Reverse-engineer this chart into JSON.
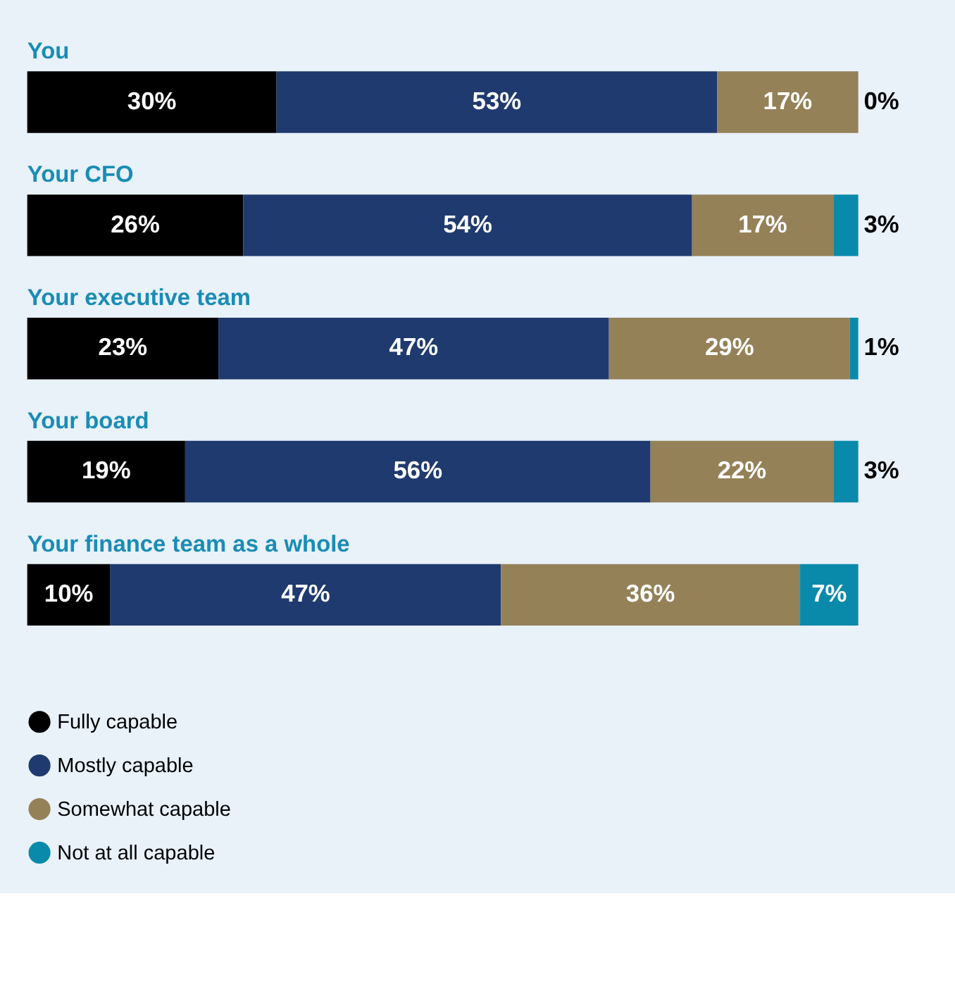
{
  "chart_data": {
    "type": "bar",
    "orientation": "horizontal",
    "stacked": true,
    "legend": "bottom left",
    "categories": [
      "You",
      "Your CFO",
      "Your executive team",
      "Your board",
      "Your finance team as a whole"
    ],
    "series": [
      {
        "name": "Fully capable",
        "color": "#000000",
        "values": [
          30,
          26,
          23,
          19,
          10
        ],
        "value_labels": [
          "30%",
          "26%",
          "23%",
          "19%",
          "10%"
        ]
      },
      {
        "name": "Mostly capable",
        "color": "#1f3a6e",
        "values": [
          53,
          54,
          47,
          56,
          47
        ],
        "value_labels": [
          "53%",
          "54%",
          "47%",
          "56%",
          "47%"
        ]
      },
      {
        "name": "Somewhat capable",
        "color": "#948158",
        "values": [
          17,
          17,
          29,
          22,
          36
        ],
        "value_labels": [
          "17%",
          "17%",
          "29%",
          "22%",
          "36%"
        ]
      },
      {
        "name": "Not at all capable",
        "color": "#0a8aab",
        "values": [
          0,
          3,
          1,
          3,
          7
        ],
        "value_labels": [
          "0%",
          "3%",
          "1%",
          "3%",
          "7%"
        ]
      }
    ]
  }
}
